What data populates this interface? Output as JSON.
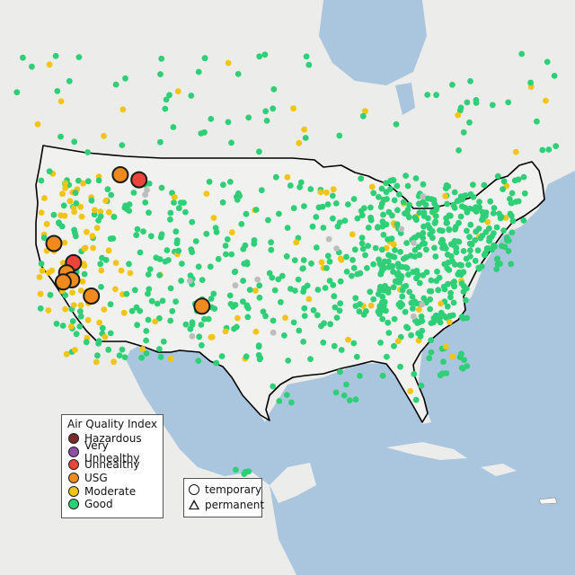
{
  "legend_aqi": {
    "title": "Air Quality Index",
    "items": [
      {
        "label": "Hazardous",
        "color": "#7a2b2b"
      },
      {
        "label": "Very Unhealthy",
        "color": "#8e4ea6"
      },
      {
        "label": "Unhealthy",
        "color": "#e8453c"
      },
      {
        "label": "USG",
        "color": "#ef8a1e"
      },
      {
        "label": "Moderate",
        "color": "#f2c413"
      },
      {
        "label": "Good",
        "color": "#2fcf78"
      }
    ]
  },
  "legend_type": {
    "items": [
      {
        "label": "temporary",
        "shape": "circle"
      },
      {
        "label": "permanent",
        "shape": "triangle"
      }
    ]
  },
  "colors": {
    "ocean": "#a9c6de",
    "land": "#ececea",
    "us_land": "#f0f0ee",
    "no_data": "#bdbdbd"
  },
  "large_markers": [
    {
      "category": "USG",
      "lon": -116.2,
      "lat": 48.6
    },
    {
      "category": "Unhealthy",
      "lon": -114.0,
      "lat": 48.1
    },
    {
      "category": "USG",
      "lon": -124.0,
      "lat": 41.8
    },
    {
      "category": "Unhealthy",
      "lon": -121.7,
      "lat": 39.9
    },
    {
      "category": "USG",
      "lon": -122.5,
      "lat": 38.9
    },
    {
      "category": "USG",
      "lon": -121.9,
      "lat": 38.2
    },
    {
      "category": "USG",
      "lon": -122.9,
      "lat": 38.0
    },
    {
      "category": "USG",
      "lon": -119.6,
      "lat": 36.6
    },
    {
      "category": "USG",
      "lon": -106.6,
      "lat": 35.6
    }
  ]
}
